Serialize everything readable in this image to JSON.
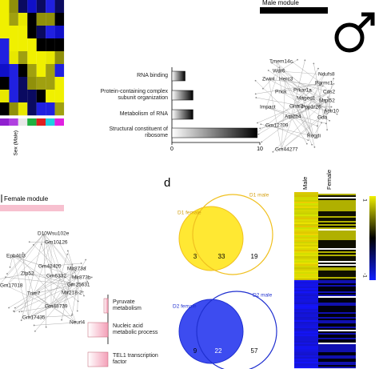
{
  "heatmap_a": {
    "label": "Sex (Male)"
  },
  "male_module": {
    "title": "Male module",
    "genes": [
      "Tmem14c",
      "Wdr6",
      "Ndufs8",
      "Zwint",
      "Herc3",
      "Pgrmc1",
      "Cds2",
      "Pnck",
      "Prkar1a",
      "Mrpl52",
      "Maged1",
      "Gnai2",
      "Ppp1r26",
      "Impact",
      "Actr10",
      "Atp2b4",
      "Gda",
      "Gm12709",
      "Rogdi",
      "Gm44277"
    ],
    "bars": {
      "type": "bar",
      "categories": [
        "RNA binding",
        "Protein-containing complex subunit organization",
        "Metabolism of RNA",
        "Structural constituent of ribosome"
      ],
      "values": [
        1.5,
        2.4,
        2.4,
        9.7
      ],
      "xlim": [
        0,
        10
      ],
      "xticks": [
        0,
        10
      ]
    }
  },
  "female_module": {
    "title": "Female module",
    "genes": [
      "D10Wsu102e",
      "Gm10126",
      "Epb41l3",
      "Gm42420",
      "Mir873a",
      "Zfp52",
      "Gm6332",
      "Mir873b",
      "Gm25631",
      "Mir218-2",
      "Gm17018",
      "Trim7",
      "Gm48739",
      "Neurl4",
      "Gm17435"
    ],
    "bars": {
      "type": "bar",
      "categories": [
        "Pyruvate metabolism",
        "Nucleic acid metabolic process",
        "TEL1 transcription factor"
      ],
      "values": [
        0.5,
        2.5,
        2.5
      ],
      "xlim": [
        0,
        10
      ]
    }
  },
  "panel_d": {
    "label": "d",
    "venn": [
      {
        "left_label": "D1 female",
        "right_label": "D1 male",
        "counts": [
          3,
          33,
          19
        ]
      },
      {
        "left_label": "D2 female",
        "right_label": "D2 male",
        "counts": [
          9,
          22,
          57
        ]
      }
    ],
    "heatmap": {
      "columns": [
        "Male",
        "Female"
      ],
      "colorbar": [
        1,
        -1
      ]
    }
  }
}
